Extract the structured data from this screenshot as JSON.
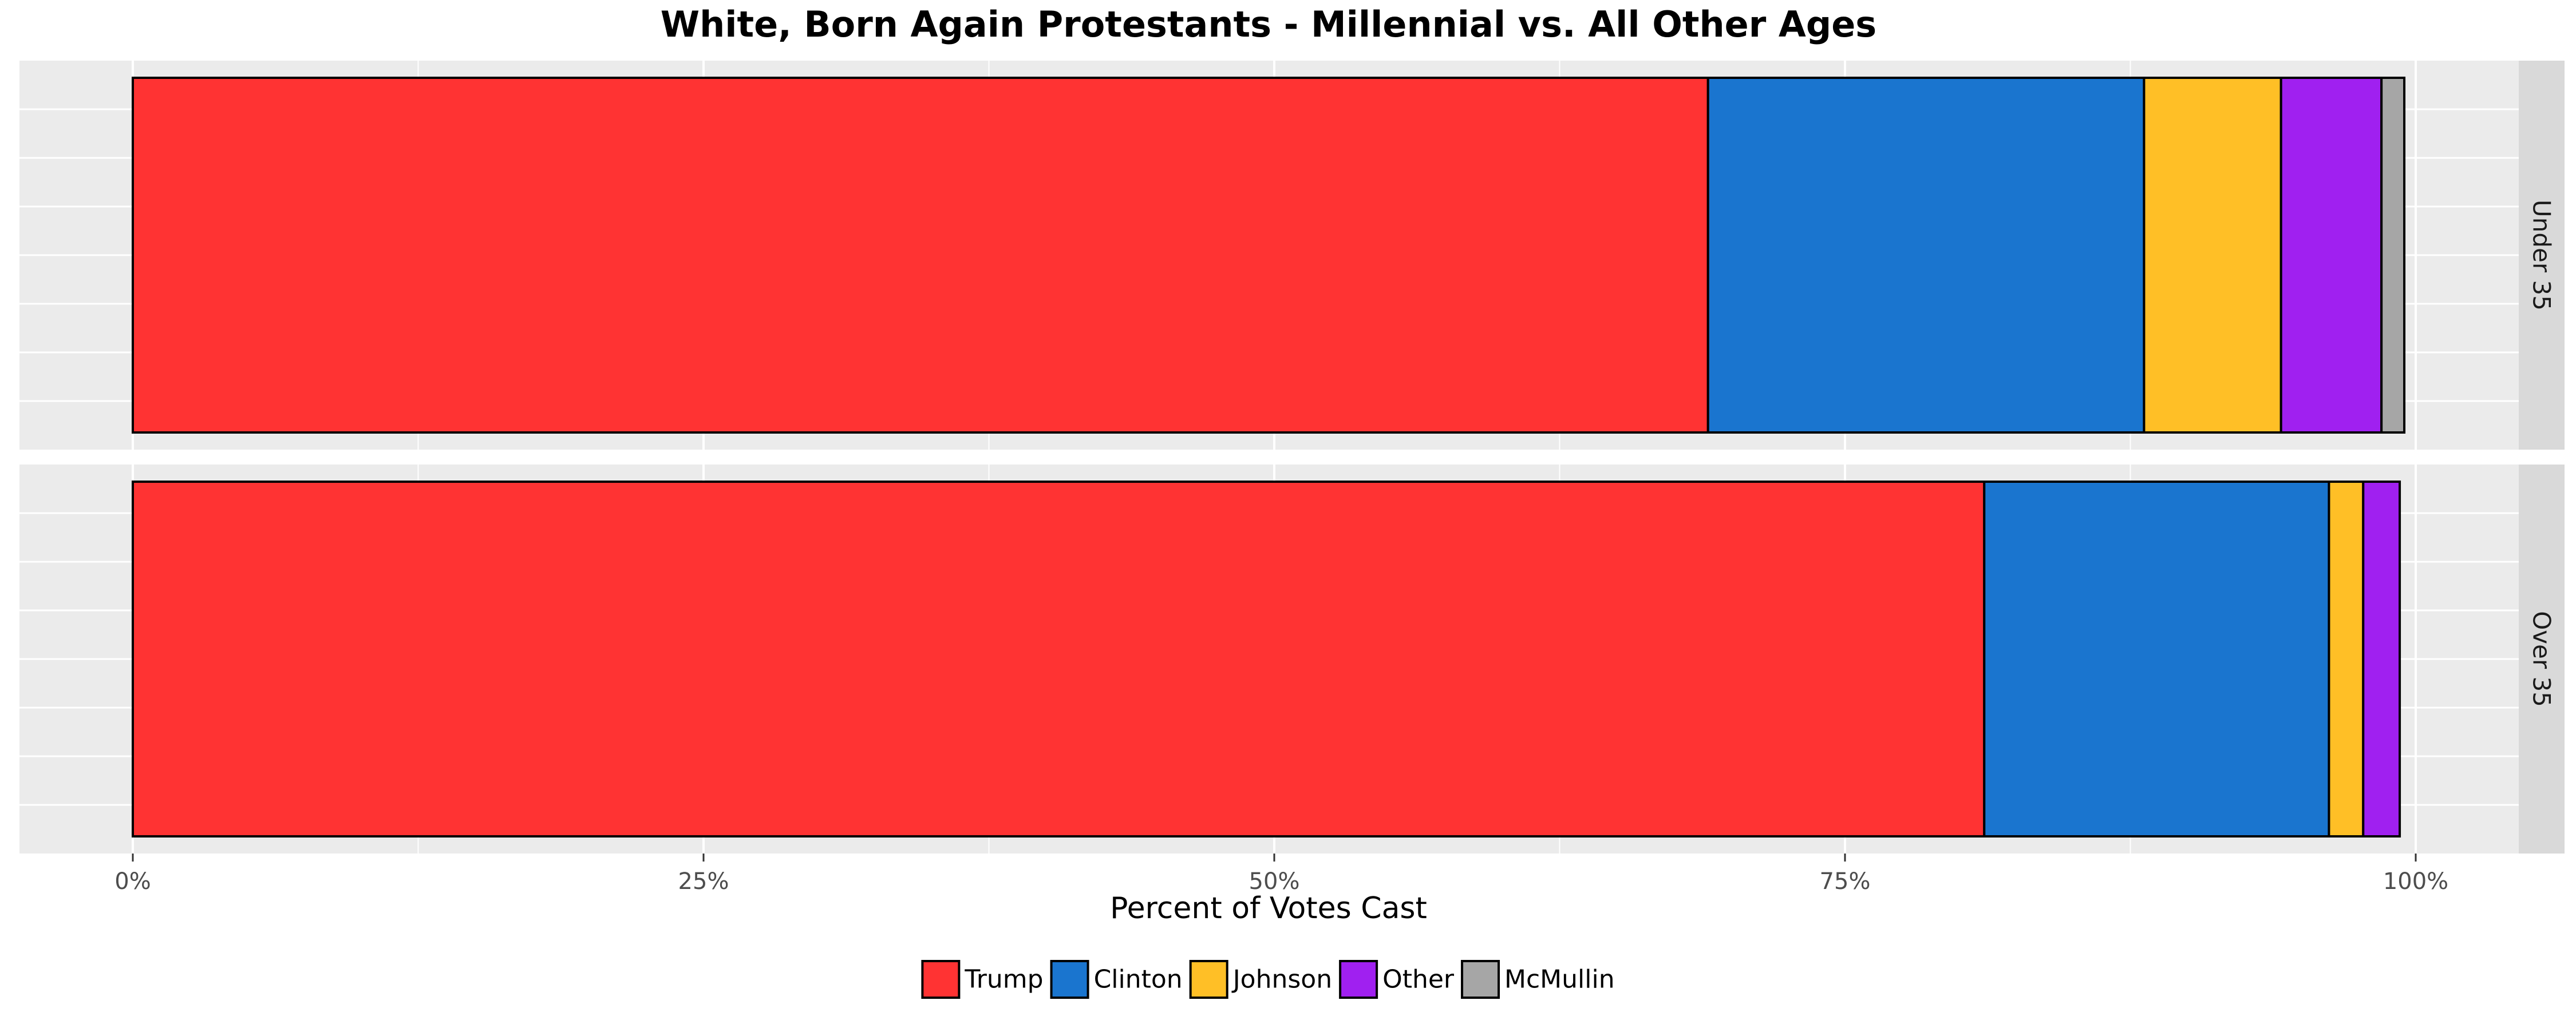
{
  "chart_data": {
    "type": "bar",
    "orientation": "horizontal",
    "stacked": true,
    "title": "White, Born Again Protestants - Millennial vs. All Other Ages",
    "xlabel": "Percent of Votes Cast",
    "ylabel": "",
    "xlim": [
      0,
      100
    ],
    "x_ticks": [
      "0%",
      "25%",
      "50%",
      "75%",
      "100%"
    ],
    "x_tick_values": [
      0,
      25,
      50,
      75,
      100
    ],
    "grid": true,
    "legend_position": "bottom",
    "categories": [
      "Under 35",
      "Over 35"
    ],
    "series": [
      {
        "name": "Trump",
        "color": "#FF3333",
        "values": [
          69.0,
          81.1
        ]
      },
      {
        "name": "Clinton",
        "color": "#1A75CF",
        "values": [
          19.1,
          15.1
        ]
      },
      {
        "name": "Johnson",
        "color": "#FFBF26",
        "values": [
          6.0,
          1.5
        ]
      },
      {
        "name": "Other",
        "color": "#A020F0",
        "values": [
          4.4,
          1.6
        ]
      },
      {
        "name": "McMullin",
        "color": "#A6A6A6",
        "values": [
          1.0,
          0.0
        ]
      }
    ]
  }
}
